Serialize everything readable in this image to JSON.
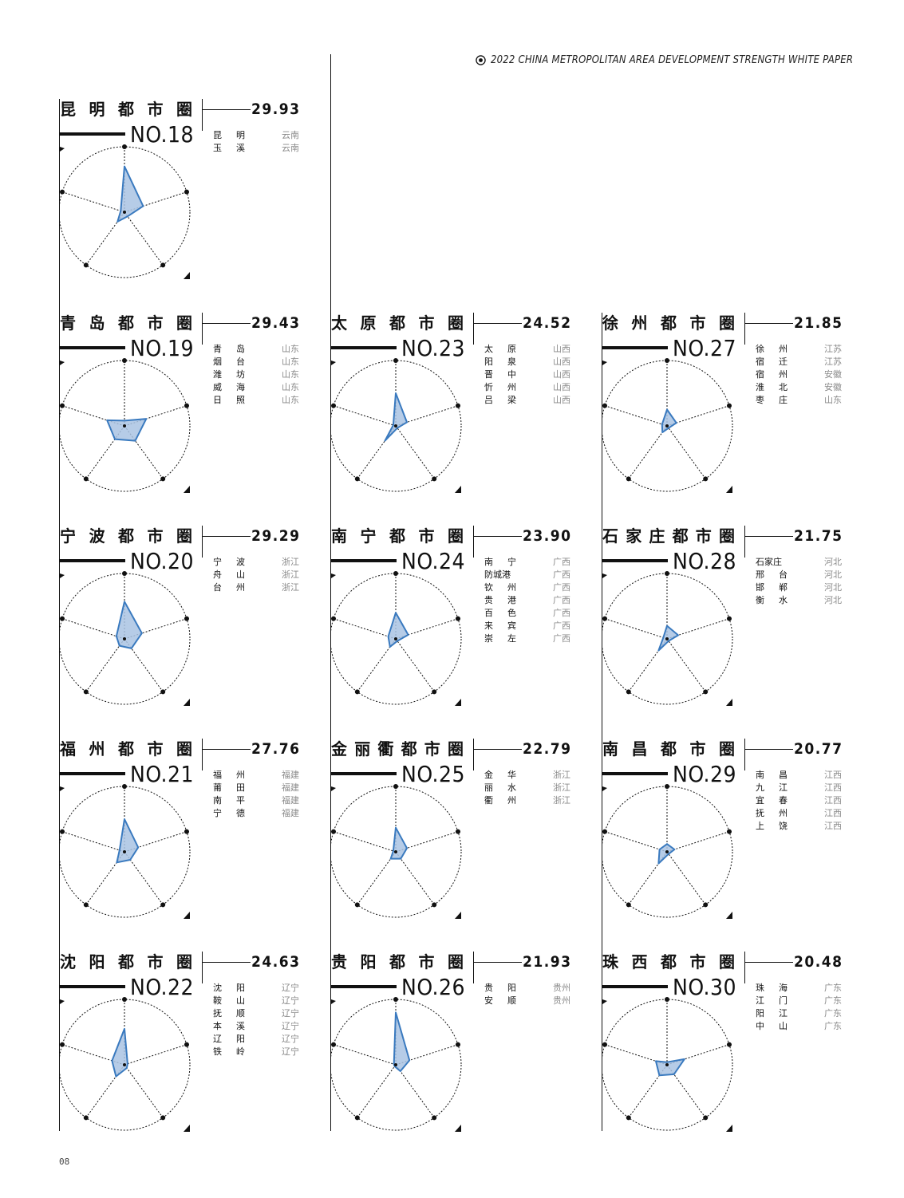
{
  "header": {
    "title": "2022 CHINA METROPOLITAN AREA DEVELOPMENT STRENGTH WHITE PAPER"
  },
  "page_number": "08",
  "colors": {
    "fill": "#a9c3e3",
    "stroke": "#3a7abf"
  },
  "cards": [
    {
      "name": "昆明都市圈",
      "score": "29.93",
      "rank": "NO.18",
      "values": [
        0.7,
        0.3,
        0.08,
        0.18,
        0.06
      ],
      "cities": [
        {
          "city": "昆明",
          "province": "云南"
        },
        {
          "city": "玉溪",
          "province": "云南"
        }
      ]
    },
    {
      "name": "青岛都市圈",
      "score": "29.43",
      "rank": "NO.19",
      "values": [
        0.08,
        0.35,
        0.28,
        0.25,
        0.28
      ],
      "cities": [
        {
          "city": "青岛",
          "province": "山东"
        },
        {
          "city": "烟台",
          "province": "山东"
        },
        {
          "city": "潍坊",
          "province": "山东"
        },
        {
          "city": "威海",
          "province": "山东"
        },
        {
          "city": "日照",
          "province": "山东"
        }
      ]
    },
    {
      "name": "宁波都市圈",
      "score": "29.29",
      "rank": "NO.20",
      "values": [
        0.57,
        0.28,
        0.18,
        0.13,
        0.13
      ],
      "cities": [
        {
          "city": "宁波",
          "province": "浙江"
        },
        {
          "city": "舟山",
          "province": "浙江"
        },
        {
          "city": "台州",
          "province": "浙江"
        }
      ]
    },
    {
      "name": "福州都市圈",
      "score": "27.76",
      "rank": "NO.21",
      "values": [
        0.5,
        0.22,
        0.15,
        0.2,
        0.08
      ],
      "cities": [
        {
          "city": "福州",
          "province": "福建"
        },
        {
          "city": "莆田",
          "province": "福建"
        },
        {
          "city": "南平",
          "province": "福建"
        },
        {
          "city": "宁德",
          "province": "福建"
        }
      ]
    },
    {
      "name": "沈阳都市圈",
      "score": "24.63",
      "rank": "NO.22",
      "values": [
        0.55,
        0.05,
        0.06,
        0.22,
        0.2
      ],
      "cities": [
        {
          "city": "沈阳",
          "province": "辽宁"
        },
        {
          "city": "鞍山",
          "province": "辽宁"
        },
        {
          "city": "抚顺",
          "province": "辽宁"
        },
        {
          "city": "本溪",
          "province": "辽宁"
        },
        {
          "city": "辽阳",
          "province": "辽宁"
        },
        {
          "city": "铁岭",
          "province": "辽宁"
        }
      ]
    },
    {
      "name": "太原都市圈",
      "score": "24.52",
      "rank": "NO.23",
      "values": [
        0.5,
        0.18,
        0.04,
        0.28,
        0.04
      ],
      "cities": [
        {
          "city": "太原",
          "province": "山西"
        },
        {
          "city": "阳泉",
          "province": "山西"
        },
        {
          "city": "晋中",
          "province": "山西"
        },
        {
          "city": "忻州",
          "province": "山西"
        },
        {
          "city": "吕梁",
          "province": "山西"
        }
      ]
    },
    {
      "name": "南宁都市圈",
      "score": "23.90",
      "rank": "NO.24",
      "values": [
        0.4,
        0.2,
        0.04,
        0.15,
        0.12
      ],
      "cities": [
        {
          "city": "南宁",
          "province": "广西"
        },
        {
          "city": "防城港",
          "province": "广西"
        },
        {
          "city": "钦州",
          "province": "广西"
        },
        {
          "city": "贵港",
          "province": "广西"
        },
        {
          "city": "百色",
          "province": "广西"
        },
        {
          "city": "来宾",
          "province": "广西"
        },
        {
          "city": "崇左",
          "province": "广西"
        }
      ]
    },
    {
      "name": "金丽衢都市圈",
      "score": "22.79",
      "rank": "NO.25",
      "values": [
        0.37,
        0.18,
        0.13,
        0.13,
        0.04
      ],
      "cities": [
        {
          "city": "金华",
          "province": "浙江"
        },
        {
          "city": "丽水",
          "province": "浙江"
        },
        {
          "city": "衢州",
          "province": "浙江"
        }
      ]
    },
    {
      "name": "贵阳都市圈",
      "score": "21.93",
      "rank": "NO.26",
      "values": [
        0.8,
        0.22,
        0.12,
        0.03,
        0.03
      ],
      "cities": [
        {
          "city": "贵阳",
          "province": "贵州"
        },
        {
          "city": "安顺",
          "province": "贵州"
        }
      ]
    },
    {
      "name": "徐州都市圈",
      "score": "21.85",
      "rank": "NO.27",
      "values": [
        0.25,
        0.15,
        0.04,
        0.12,
        0.08
      ],
      "cities": [
        {
          "city": "徐州",
          "province": "江苏"
        },
        {
          "city": "宿迁",
          "province": "江苏"
        },
        {
          "city": "宿州",
          "province": "安徽"
        },
        {
          "city": "淮北",
          "province": "安徽"
        },
        {
          "city": "枣庄",
          "province": "山东"
        }
      ]
    },
    {
      "name": "石家庄都市圈",
      "score": "21.75",
      "rank": "NO.28",
      "values": [
        0.2,
        0.18,
        0.04,
        0.22,
        0.06
      ],
      "cities": [
        {
          "city": "石家庄",
          "province": "河北"
        },
        {
          "city": "邢台",
          "province": "河北"
        },
        {
          "city": "邯郸",
          "province": "河北"
        },
        {
          "city": "衡水",
          "province": "河北"
        }
      ]
    },
    {
      "name": "南昌都市圈",
      "score": "20.77",
      "rank": "NO.29",
      "values": [
        0.12,
        0.12,
        0.04,
        0.22,
        0.12
      ],
      "cities": [
        {
          "city": "南昌",
          "province": "江西"
        },
        {
          "city": "九江",
          "province": "江西"
        },
        {
          "city": "宜春",
          "province": "江西"
        },
        {
          "city": "抚州",
          "province": "江西"
        },
        {
          "city": "上饶",
          "province": "江西"
        }
      ]
    },
    {
      "name": "珠西都市圈",
      "score": "20.48",
      "rank": "NO.30",
      "values": [
        0.04,
        0.28,
        0.18,
        0.2,
        0.18
      ],
      "cities": [
        {
          "city": "珠海",
          "province": "广东"
        },
        {
          "city": "江门",
          "province": "广东"
        },
        {
          "city": "阳江",
          "province": "广东"
        },
        {
          "city": "中山",
          "province": "广东"
        }
      ]
    }
  ]
}
